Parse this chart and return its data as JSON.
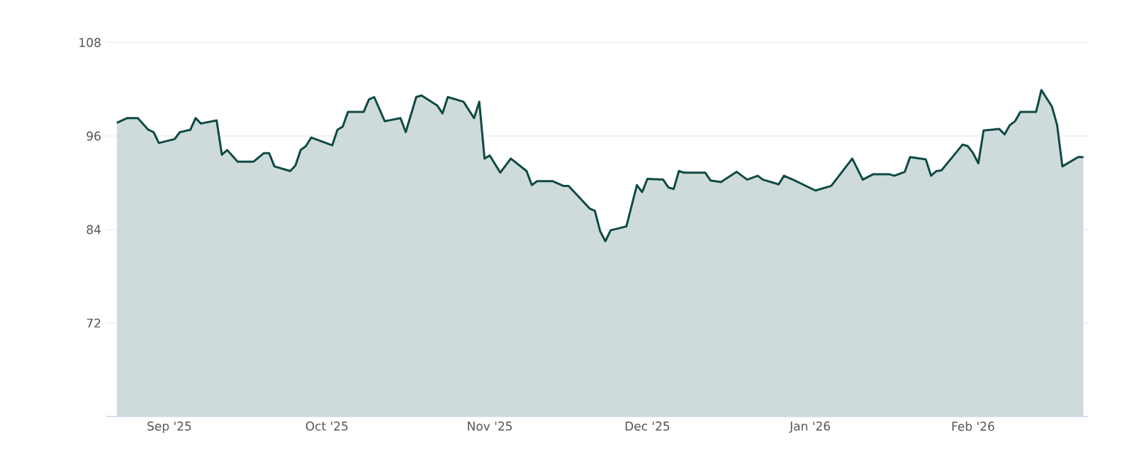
{
  "chart_data": {
    "type": "area",
    "grid": "y",
    "xlim": [
      "2025-08-20",
      "2026-02-23"
    ],
    "ylim": [
      60,
      108
    ],
    "yticks": [
      72,
      84,
      96,
      108
    ],
    "xticks": [
      {
        "value": "2025-09-01",
        "label": "Sep '25"
      },
      {
        "value": "2025-10-01",
        "label": "Oct '25"
      },
      {
        "value": "2025-11-01",
        "label": "Nov '25"
      },
      {
        "value": "2025-12-01",
        "label": "Dec '25"
      },
      {
        "value": "2026-01-01",
        "label": "Jan '26"
      },
      {
        "value": "2026-02-01",
        "label": "Feb '26"
      }
    ],
    "series": [
      {
        "color": "#0e4a45",
        "x": [
          "2025-08-22",
          "2025-08-24",
          "2025-08-26",
          "2025-08-28",
          "2025-08-29",
          "2025-08-30",
          "2025-09-02",
          "2025-09-03",
          "2025-09-05",
          "2025-09-06",
          "2025-09-07",
          "2025-09-10",
          "2025-09-11",
          "2025-09-12",
          "2025-09-14",
          "2025-09-17",
          "2025-09-19",
          "2025-09-20",
          "2025-09-21",
          "2025-09-24",
          "2025-09-25",
          "2025-09-26",
          "2025-09-27",
          "2025-09-28",
          "2025-10-02",
          "2025-10-03",
          "2025-10-04",
          "2025-10-05",
          "2025-10-08",
          "2025-10-09",
          "2025-10-10",
          "2025-10-12",
          "2025-10-15",
          "2025-10-16",
          "2025-10-18",
          "2025-10-19",
          "2025-10-22",
          "2025-10-23",
          "2025-10-24",
          "2025-10-27",
          "2025-10-29",
          "2025-10-30",
          "2025-10-31",
          "2025-11-01",
          "2025-11-03",
          "2025-11-05",
          "2025-11-08",
          "2025-11-09",
          "2025-11-10",
          "2025-11-13",
          "2025-11-15",
          "2025-11-16",
          "2025-11-20",
          "2025-11-21",
          "2025-11-22",
          "2025-11-23",
          "2025-11-24",
          "2025-11-27",
          "2025-11-29",
          "2025-11-30",
          "2025-12-01",
          "2025-12-04",
          "2025-12-05",
          "2025-12-06",
          "2025-12-07",
          "2025-12-08",
          "2025-12-12",
          "2025-12-13",
          "2025-12-15",
          "2025-12-18",
          "2025-12-20",
          "2025-12-22",
          "2025-12-23",
          "2025-12-26",
          "2025-12-27",
          "2025-12-29",
          "2026-01-02",
          "2026-01-05",
          "2026-01-09",
          "2026-01-11",
          "2026-01-13",
          "2026-01-16",
          "2026-01-17",
          "2026-01-19",
          "2026-01-20",
          "2026-01-23",
          "2026-01-24",
          "2026-01-25",
          "2026-01-26",
          "2026-01-30",
          "2026-01-31",
          "2026-02-01",
          "2026-02-02",
          "2026-02-03",
          "2026-02-06",
          "2026-02-07",
          "2026-02-08",
          "2026-02-09",
          "2026-02-10",
          "2026-02-13",
          "2026-02-14",
          "2026-02-16",
          "2026-02-17",
          "2026-02-18",
          "2026-02-21",
          "2026-02-22"
        ],
        "values": [
          97.7,
          98.3,
          98.3,
          96.8,
          96.5,
          95.1,
          95.6,
          96.5,
          96.8,
          98.3,
          97.6,
          98.0,
          93.6,
          94.2,
          92.7,
          92.7,
          93.8,
          93.8,
          92.1,
          91.5,
          92.2,
          94.2,
          94.7,
          95.8,
          94.8,
          96.8,
          97.2,
          99.1,
          99.1,
          100.7,
          101.0,
          97.9,
          98.3,
          96.5,
          101.0,
          101.2,
          99.9,
          98.9,
          101.0,
          100.4,
          98.3,
          100.4,
          93.1,
          93.5,
          91.3,
          93.1,
          91.5,
          89.7,
          90.2,
          90.2,
          89.6,
          89.6,
          86.7,
          86.4,
          83.8,
          82.5,
          83.9,
          84.4,
          89.7,
          88.8,
          90.5,
          90.4,
          89.4,
          89.2,
          91.5,
          91.3,
          91.3,
          90.3,
          90.1,
          91.4,
          90.4,
          90.9,
          90.4,
          89.8,
          90.9,
          90.3,
          89.0,
          89.6,
          93.1,
          90.4,
          91.1,
          91.1,
          90.9,
          91.4,
          93.3,
          93.0,
          90.9,
          91.5,
          91.6,
          94.9,
          94.7,
          93.8,
          92.5,
          96.7,
          96.9,
          96.2,
          97.4,
          97.9,
          99.1,
          99.1,
          101.9,
          99.8,
          97.4,
          92.1,
          93.3,
          93.3
        ]
      }
    ]
  }
}
